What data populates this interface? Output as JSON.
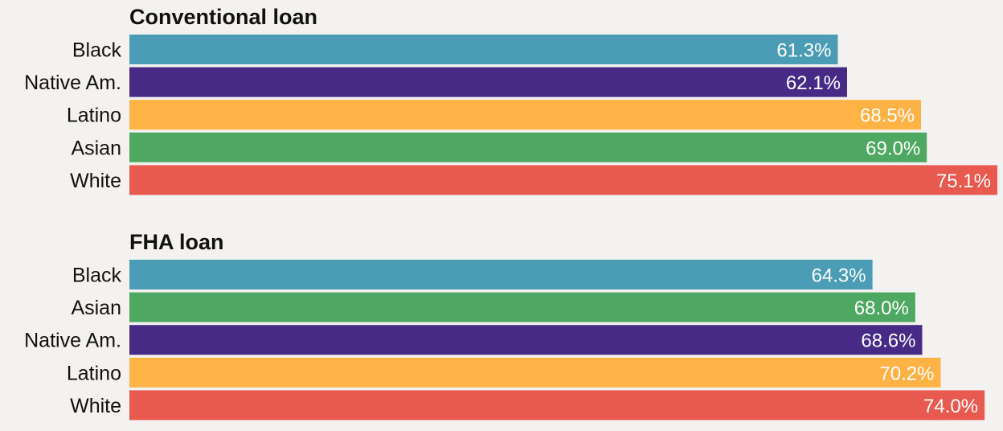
{
  "chart_data": [
    {
      "type": "bar",
      "orientation": "horizontal",
      "title": "Conventional loan",
      "categories": [
        "Black",
        "Native Am.",
        "Latino",
        "Asian",
        "White"
      ],
      "values": [
        61.3,
        62.1,
        68.5,
        69.0,
        75.1
      ],
      "value_labels": [
        "61.3%",
        "62.1%",
        "68.5%",
        "69.0%",
        "75.1%"
      ],
      "xlim": [
        0,
        75.1
      ],
      "grid": false,
      "colors": {
        "Black": "#4a9db5",
        "Native Am.": "#472a85",
        "Latino": "#ffb347",
        "Asian": "#4fa862",
        "White": "#e85a50"
      }
    },
    {
      "type": "bar",
      "orientation": "horizontal",
      "title": "FHA loan",
      "categories": [
        "Black",
        "Asian",
        "Native Am.",
        "Latino",
        "White"
      ],
      "values": [
        64.3,
        68.0,
        68.6,
        70.2,
        74.0
      ],
      "value_labels": [
        "64.3%",
        "68.0%",
        "68.6%",
        "70.2%",
        "74.0%"
      ],
      "xlim": [
        0,
        75.1
      ],
      "grid": false,
      "colors": {
        "Black": "#4a9db5",
        "Asian": "#4fa862",
        "Native Am.": "#472a85",
        "Latino": "#ffb347",
        "White": "#e85a50"
      }
    }
  ]
}
